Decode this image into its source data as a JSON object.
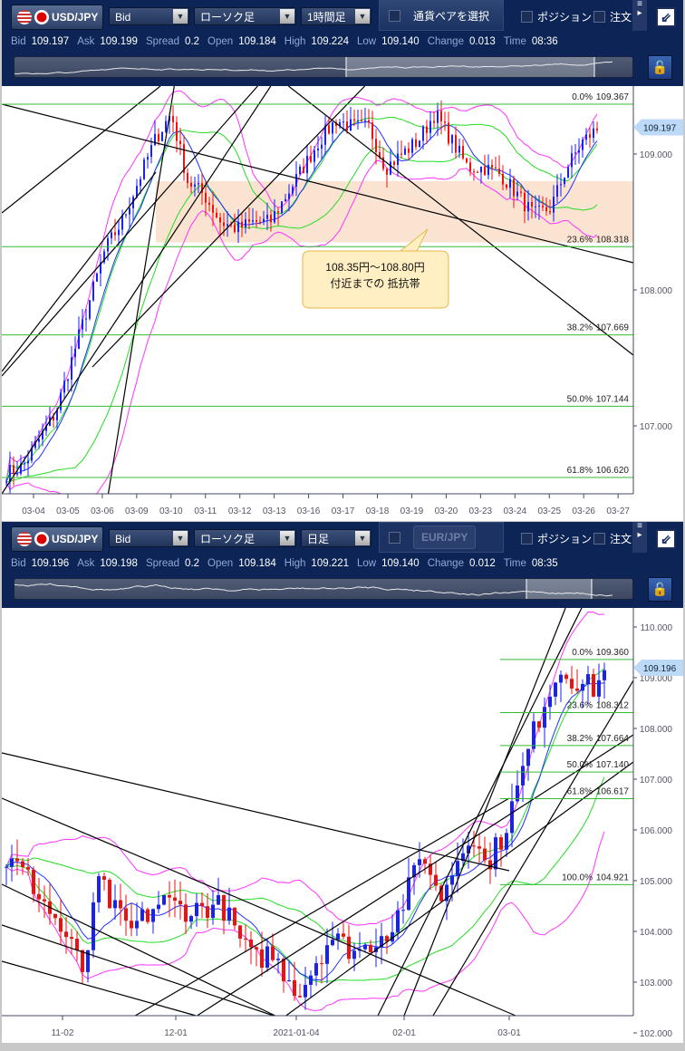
{
  "panels": [
    {
      "pair": "USD/JPY",
      "price_type": "Bid",
      "chart_type": "ローソク足",
      "timeframe": "1時間足",
      "pair_selector": {
        "label": "通貨ペアを選択",
        "pair": "",
        "enabled": true
      },
      "position_label": "ポジション",
      "order_label": "注文",
      "stats": {
        "bid_label": "Bid",
        "bid": "109.197",
        "ask_label": "Ask",
        "ask": "109.199",
        "spread_label": "Spread",
        "spread": "0.2",
        "open_label": "Open",
        "open": "109.184",
        "high_label": "High",
        "high": "109.224",
        "low_label": "Low",
        "low": "109.140",
        "change_label": "Change",
        "change": "0.013",
        "time_label": "Time",
        "time": "08:36"
      },
      "current_price": "109.197",
      "y_ticks": [
        "109.000",
        "108.000",
        "107.000"
      ],
      "x_ticks": [
        "03-04",
        "03-05",
        "03-06",
        "03-09",
        "03-10",
        "03-11",
        "03-12",
        "03-13",
        "03-16",
        "03-17",
        "03-18",
        "03-19",
        "03-20",
        "03-23",
        "03-24",
        "03-25",
        "03-26",
        "03-27"
      ],
      "fib": [
        {
          "pct": "0.0%",
          "price": "109.367"
        },
        {
          "pct": "23.6%",
          "price": "108.318"
        },
        {
          "pct": "38.2%",
          "price": "107.669"
        },
        {
          "pct": "50.0%",
          "price": "107.144"
        },
        {
          "pct": "61.8%",
          "price": "106.620"
        }
      ],
      "resistance_zone": {
        "low": 108.35,
        "high": 108.8
      },
      "callout": {
        "line1": "108.35円～108.80円",
        "line2": "付近までの 抵抗帯"
      },
      "price_path": [
        106.65,
        106.7,
        106.9,
        107.1,
        107.5,
        107.9,
        108.3,
        108.5,
        108.8,
        109.1,
        109.3,
        108.8,
        108.7,
        108.5,
        108.45,
        108.5,
        108.5,
        108.7,
        108.9,
        109.1,
        109.25,
        109.2,
        109.2,
        108.9,
        109.0,
        109.1,
        109.3,
        109.1,
        108.9,
        108.9,
        108.85,
        108.7,
        108.55,
        108.6,
        108.9,
        109.1,
        109.2
      ]
    },
    {
      "pair": "USD/JPY",
      "price_type": "Bid",
      "chart_type": "ローソク足",
      "timeframe": "日足",
      "pair_selector": {
        "label": "",
        "pair": "EUR/JPY",
        "enabled": false
      },
      "position_label": "ポジション",
      "order_label": "注文",
      "stats": {
        "bid_label": "Bid",
        "bid": "109.196",
        "ask_label": "Ask",
        "ask": "109.198",
        "spread_label": "Spread",
        "spread": "0.2",
        "open_label": "Open",
        "open": "109.184",
        "high_label": "High",
        "high": "109.221",
        "low_label": "Low",
        "low": "109.140",
        "change_label": "Change",
        "change": "0.012",
        "time_label": "Time",
        "time": "08:35"
      },
      "current_price": "109.196",
      "y_ticks": [
        "110.000",
        "109.000",
        "108.000",
        "107.000",
        "106.000",
        "105.000",
        "104.000",
        "103.000",
        "102.000"
      ],
      "x_ticks": [
        "11-02",
        "12-01",
        "2021-01-04",
        "02-01",
        "03-01"
      ],
      "fib": [
        {
          "pct": "0.0%",
          "price": "109.360"
        },
        {
          "pct": "23.6%",
          "price": "108.312"
        },
        {
          "pct": "38.2%",
          "price": "107.664"
        },
        {
          "pct": "50.0%",
          "price": "107.140"
        },
        {
          "pct": "61.8%",
          "price": "106.617"
        },
        {
          "pct": "100.0%",
          "price": "104.921"
        }
      ],
      "price_path": [
        105.4,
        105.2,
        104.8,
        104.3,
        103.8,
        103.2,
        105.0,
        104.4,
        104.0,
        104.3,
        104.6,
        104.5,
        104.4,
        104.5,
        104.5,
        103.9,
        103.4,
        103.6,
        103.2,
        102.8,
        103.4,
        103.9,
        103.7,
        103.6,
        103.9,
        104.1,
        104.8,
        105.6,
        104.6,
        105.3,
        106.0,
        105.3,
        105.8,
        106.7,
        107.8,
        108.7,
        109.2,
        108.9,
        108.8,
        109.2
      ]
    }
  ],
  "colors": {
    "toolbar": "#0c2556",
    "bollinger": "#ff33ff",
    "ma_fast": "#2030ff",
    "ma_band": "#22dd22",
    "fib": "#33bb33",
    "bull": "#1a22ee",
    "bear": "#ee1111",
    "zone": "#fbe3d2"
  },
  "icons": [
    "us-flag-icon",
    "jp-flag-icon",
    "dropdown-chevron-icon",
    "checkbox-icon",
    "menu-icon",
    "restore-window-icon",
    "lock-scale-icon"
  ]
}
